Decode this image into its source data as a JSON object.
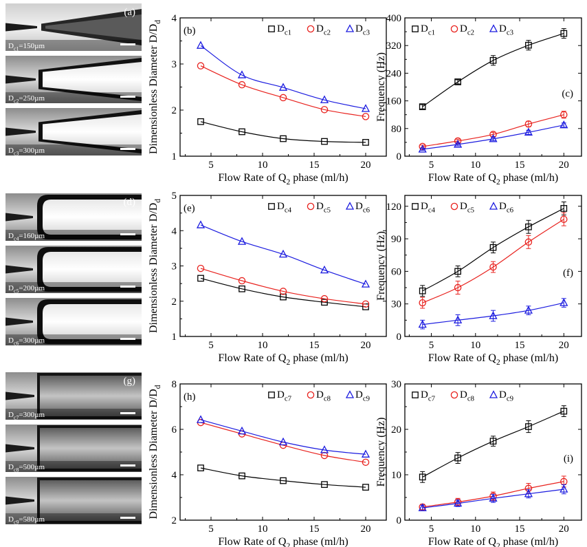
{
  "photo_panels": [
    {
      "label": "(a)",
      "images": [
        {
          "caption_parts": [
            "D",
            "c1",
            "=150µm"
          ],
          "style": "taper-gap"
        },
        {
          "caption_parts": [
            "D",
            "c2",
            "=250µm"
          ],
          "style": "taper-dark"
        },
        {
          "caption_parts": [
            "D",
            "c3",
            "=300µm"
          ],
          "style": "taper-dark"
        }
      ]
    },
    {
      "label": "(d)",
      "images": [
        {
          "caption_parts": [
            "D",
            "c4",
            "=160µm"
          ],
          "style": "rounded-channel"
        },
        {
          "caption_parts": [
            "D",
            "c5",
            "=200µm"
          ],
          "style": "rounded-channel"
        },
        {
          "caption_parts": [
            "D",
            "c6",
            "=300µm"
          ],
          "style": "rounded-channel"
        }
      ]
    },
    {
      "label": "(g)",
      "images": [
        {
          "caption_parts": [
            "D",
            "c7",
            "=300µm"
          ],
          "style": "flat-channel"
        },
        {
          "caption_parts": [
            "D",
            "c8",
            "=500µm"
          ],
          "style": "flat-channel"
        },
        {
          "caption_parts": [
            "D",
            "c9",
            "=580µm"
          ],
          "style": "flat-channel"
        }
      ]
    }
  ],
  "chart_data": [
    {
      "type": "line",
      "panel": "(b)",
      "label_position": "top-left",
      "x": [
        4,
        8,
        12,
        16,
        20
      ],
      "xlim": [
        2,
        22
      ],
      "xticks": [
        5,
        10,
        15,
        20
      ],
      "ylim": [
        1,
        4
      ],
      "yticks": [
        1,
        2,
        3,
        4
      ],
      "xlabel_parts": [
        "Flow Rate of Q",
        "2",
        " phase (ml/h)"
      ],
      "ylabel_parts": [
        "Dimensionless Diameter  D/D",
        "d"
      ],
      "legend": "top-right",
      "error_bars": false,
      "series": [
        {
          "name_parts": [
            "D",
            "c1"
          ],
          "marker": "square",
          "color": "#000000",
          "values": [
            1.75,
            1.53,
            1.38,
            1.32,
            1.3
          ]
        },
        {
          "name_parts": [
            "D",
            "c2"
          ],
          "marker": "circle",
          "color": "#e8211d",
          "values": [
            2.96,
            2.55,
            2.27,
            2.01,
            1.86
          ]
        },
        {
          "name_parts": [
            "D",
            "c3"
          ],
          "marker": "triangle",
          "color": "#1a1adf",
          "values": [
            3.4,
            2.76,
            2.49,
            2.22,
            2.03
          ]
        }
      ]
    },
    {
      "type": "line",
      "panel": "(c)",
      "label_position": "middle-right",
      "x": [
        4,
        8,
        12,
        16,
        20
      ],
      "xlim": [
        2,
        22
      ],
      "xticks": [
        5,
        10,
        15,
        20
      ],
      "ylim": [
        0,
        400
      ],
      "yticks": [
        0,
        80,
        160,
        240,
        320,
        400
      ],
      "xlabel_parts": [
        "Flow Rate of Q",
        "2",
        " phase (ml/h)"
      ],
      "ylabel_parts": [
        "Frequency (Hz)"
      ],
      "legend": "top-left",
      "error_bars": true,
      "series": [
        {
          "name_parts": [
            "D",
            "c1"
          ],
          "marker": "square",
          "color": "#000000",
          "values": [
            143,
            215,
            277,
            321,
            355
          ],
          "errors": [
            6,
            6,
            14,
            14,
            14
          ]
        },
        {
          "name_parts": [
            "D",
            "c2"
          ],
          "marker": "circle",
          "color": "#e8211d",
          "values": [
            28,
            44,
            63,
            93,
            120
          ],
          "errors": [
            4,
            5,
            6,
            8,
            10
          ]
        },
        {
          "name_parts": [
            "D",
            "c3"
          ],
          "marker": "triangle",
          "color": "#1a1adf",
          "values": [
            20,
            34,
            50,
            69,
            90
          ],
          "errors": [
            3,
            4,
            5,
            6,
            6
          ]
        }
      ]
    },
    {
      "type": "line",
      "panel": "(e)",
      "label_position": "top-left",
      "x": [
        4,
        8,
        12,
        16,
        20
      ],
      "xlim": [
        2,
        22
      ],
      "xticks": [
        5,
        10,
        15,
        20
      ],
      "ylim": [
        1,
        5
      ],
      "yticks": [
        1,
        2,
        3,
        4,
        5
      ],
      "xlabel_parts": [
        "Flow Rate of Q",
        "2",
        " phase (ml/h)"
      ],
      "ylabel_parts": [
        "Dimensionless Diameter  D/D",
        "d"
      ],
      "legend": "top-right",
      "error_bars": false,
      "series": [
        {
          "name_parts": [
            "D",
            "c4"
          ],
          "marker": "square",
          "color": "#000000",
          "values": [
            2.65,
            2.35,
            2.12,
            1.97,
            1.84
          ]
        },
        {
          "name_parts": [
            "D",
            "c5"
          ],
          "marker": "circle",
          "color": "#e8211d",
          "values": [
            2.93,
            2.58,
            2.28,
            2.07,
            1.92
          ]
        },
        {
          "name_parts": [
            "D",
            "c6"
          ],
          "marker": "triangle",
          "color": "#1a1adf",
          "values": [
            4.16,
            3.69,
            3.33,
            2.88,
            2.48
          ]
        }
      ]
    },
    {
      "type": "line",
      "panel": "(f)",
      "label_position": "middle-right",
      "x": [
        4,
        8,
        12,
        16,
        20
      ],
      "xlim": [
        2,
        22
      ],
      "xticks": [
        5,
        10,
        15,
        20
      ],
      "ylim": [
        0,
        130
      ],
      "yticks": [
        0,
        30,
        60,
        90,
        120
      ],
      "xlabel_parts": [
        "Flow Rate of Q",
        "2",
        " phase (ml/h)"
      ],
      "ylabel_parts": [
        "Frequency (Hz)"
      ],
      "legend": "top-left",
      "error_bars": true,
      "series": [
        {
          "name_parts": [
            "D",
            "c4"
          ],
          "marker": "square",
          "color": "#000000",
          "values": [
            42,
            60,
            82,
            101,
            118
          ],
          "errors": [
            5,
            5,
            5,
            6,
            6
          ]
        },
        {
          "name_parts": [
            "D",
            "c5"
          ],
          "marker": "circle",
          "color": "#e8211d",
          "values": [
            31,
            45,
            64,
            87,
            108
          ],
          "errors": [
            5,
            6,
            5,
            6,
            6
          ]
        },
        {
          "name_parts": [
            "D",
            "c6"
          ],
          "marker": "triangle",
          "color": "#1a1adf",
          "values": [
            11,
            15,
            19,
            24,
            31
          ],
          "errors": [
            4,
            5,
            5,
            4,
            4
          ]
        }
      ]
    },
    {
      "type": "line",
      "panel": "(h)",
      "label_position": "top-left",
      "x": [
        4,
        8,
        12,
        16,
        20
      ],
      "xlim": [
        2,
        22
      ],
      "xticks": [
        5,
        10,
        15,
        20
      ],
      "ylim": [
        2,
        8
      ],
      "yticks": [
        2,
        4,
        6,
        8
      ],
      "xlabel_parts": [
        "Flow Rate of Q",
        "2",
        " phase (ml/h)"
      ],
      "ylabel_parts": [
        "Dimensionless Diameter  D/D",
        "d"
      ],
      "legend": "top-right",
      "error_bars": false,
      "series": [
        {
          "name_parts": [
            "D",
            "c7"
          ],
          "marker": "square",
          "color": "#000000",
          "values": [
            4.3,
            3.95,
            3.74,
            3.57,
            3.45
          ]
        },
        {
          "name_parts": [
            "D",
            "c8"
          ],
          "marker": "circle",
          "color": "#e8211d",
          "values": [
            6.3,
            5.8,
            5.3,
            4.85,
            4.55
          ]
        },
        {
          "name_parts": [
            "D",
            "c9"
          ],
          "marker": "triangle",
          "color": "#1a1adf",
          "values": [
            6.42,
            5.92,
            5.44,
            5.09,
            4.9
          ]
        }
      ]
    },
    {
      "type": "line",
      "panel": "(i)",
      "label_position": "middle-right",
      "x": [
        4,
        8,
        12,
        16,
        20
      ],
      "xlim": [
        2,
        22
      ],
      "xticks": [
        5,
        10,
        15,
        20
      ],
      "ylim": [
        0,
        30
      ],
      "yticks": [
        0,
        10,
        20,
        30
      ],
      "xlabel_parts": [
        "Flow Rate of Q",
        "2",
        " phase (ml/h)"
      ],
      "ylabel_parts": [
        "Frequency (Hz)"
      ],
      "legend": "top-left",
      "error_bars": true,
      "series": [
        {
          "name_parts": [
            "D",
            "c7"
          ],
          "marker": "square",
          "color": "#000000",
          "values": [
            9.5,
            13.7,
            17.4,
            20.6,
            24
          ],
          "errors": [
            1.2,
            1.2,
            1.1,
            1.3,
            1.2
          ]
        },
        {
          "name_parts": [
            "D",
            "c8"
          ],
          "marker": "circle",
          "color": "#e8211d",
          "values": [
            2.9,
            4,
            5.3,
            7,
            8.5
          ],
          "errors": [
            0.6,
            0.8,
            0.9,
            1.1,
            1.2
          ]
        },
        {
          "name_parts": [
            "D",
            "c9"
          ],
          "marker": "triangle",
          "color": "#1a1adf",
          "values": [
            2.7,
            3.7,
            4.8,
            5.8,
            6.8
          ],
          "errors": [
            0.6,
            0.7,
            0.9,
            0.9,
            1
          ]
        }
      ]
    }
  ]
}
